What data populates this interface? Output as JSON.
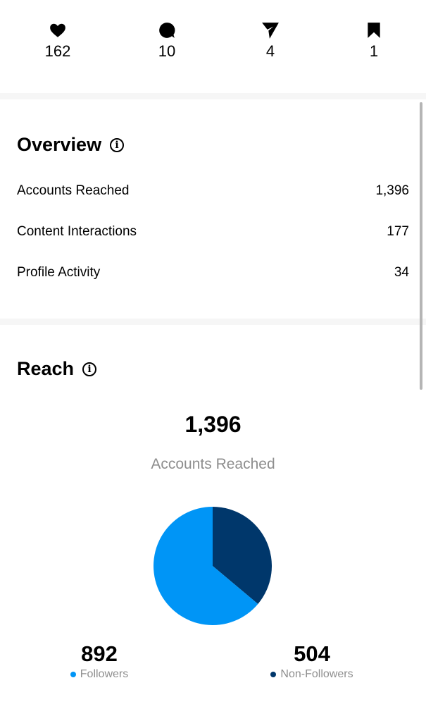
{
  "engagement": [
    {
      "icon": "heart-icon",
      "value": "162"
    },
    {
      "icon": "comment-icon",
      "value": "10"
    },
    {
      "icon": "share-icon",
      "value": "4"
    },
    {
      "icon": "bookmark-icon",
      "value": "1"
    }
  ],
  "overview": {
    "title": "Overview",
    "rows": [
      {
        "label": "Accounts Reached",
        "value": "1,396"
      },
      {
        "label": "Content Interactions",
        "value": "177"
      },
      {
        "label": "Profile Activity",
        "value": "34"
      }
    ]
  },
  "reach": {
    "title": "Reach",
    "total": "1,396",
    "total_label": "Accounts Reached",
    "segments": [
      {
        "label": "Followers",
        "value": "892",
        "number": 892,
        "color": "#0095f6"
      },
      {
        "label": "Non-Followers",
        "value": "504",
        "number": 504,
        "color": "#00376b"
      }
    ]
  }
}
